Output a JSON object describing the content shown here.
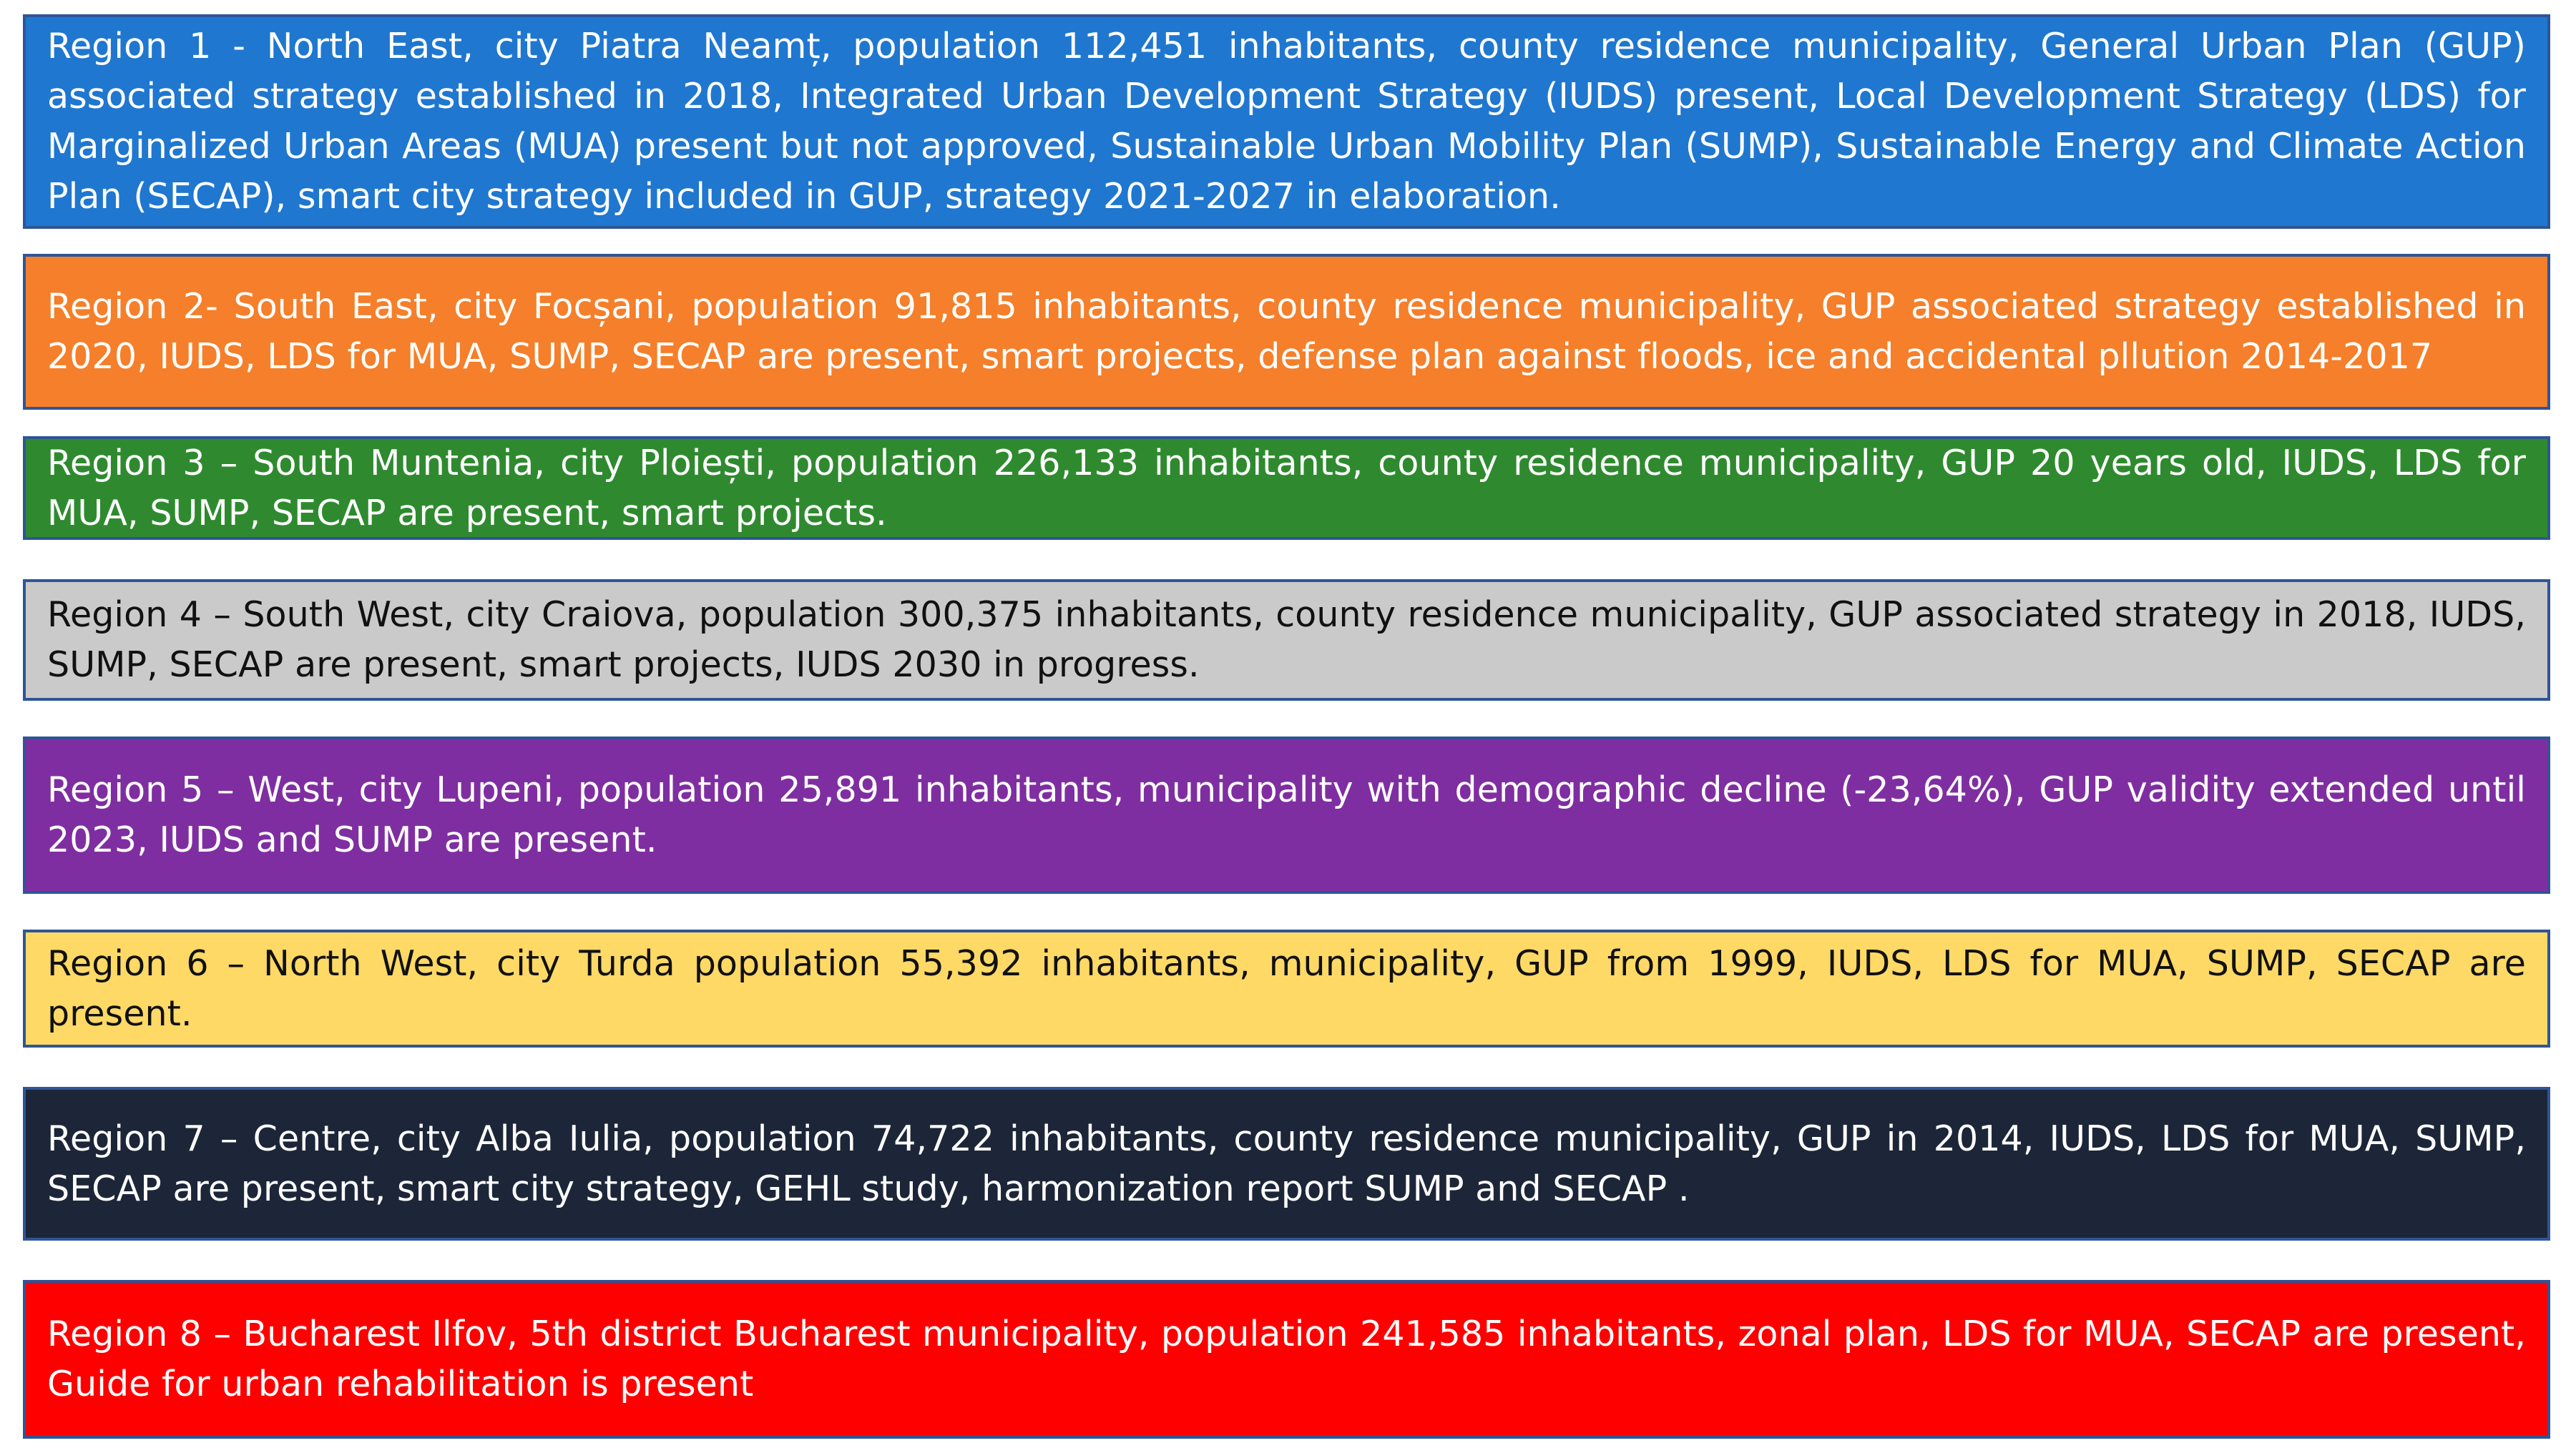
{
  "regions": [
    {
      "text": "Region 1 - North East, city Piatra Neamț, population 112,451 inhabitants, county residence municipality, General Urban Plan (GUP) associated strategy established in 2018, Integrated Urban Development Strategy (IUDS) present, Local Development Strategy (LDS) for Marginalized Urban Areas (MUA) present but not approved, Sustainable Urban Mobility Plan (SUMP), Sustainable Energy and Climate Action Plan (SECAP), smart city strategy included in GUP, strategy 2021-2027 in elaboration.",
      "bg": "#1f77d0",
      "fg": "#ffffff"
    },
    {
      "text": "Region 2- South East, city Focșani, population 91,815 inhabitants, county residence municipality, GUP associated strategy established in 2020, IUDS, LDS for MUA, SUMP, SECAP are present, smart projects, defense plan against floods, ice and accidental pllution 2014-2017",
      "bg": "#f57f2a",
      "fg": "#ffffff"
    },
    {
      "text": "Region 3 – South Muntenia, city Ploiești, population 226,133 inhabitants, county residence municipality, GUP 20 years old, IUDS, LDS for MUA, SUMP, SECAP are present, smart projects.",
      "bg": "#2f8a2f",
      "fg": "#ffffff"
    },
    {
      "text": "Region 4 – South West, city Craiova, population 300,375 inhabitants, county residence municipality, GUP associated strategy in 2018, IUDS, SUMP, SECAP are present, smart projects, IUDS 2030 in progress.",
      "bg": "#cacaca",
      "fg": "#111111"
    },
    {
      "text": "Region 5 – West, city Lupeni, population 25,891 inhabitants, municipality with demographic decline (-23,64%), GUP validity extended until 2023, IUDS and SUMP are present.",
      "bg": "#7f2ea1",
      "fg": "#ffffff"
    },
    {
      "text": "Region 6 – North West, city Turda population 55,392 inhabitants, municipality, GUP from 1999, IUDS, LDS for MUA, SUMP, SECAP are present.",
      "bg": "#ffd966",
      "fg": "#111111"
    },
    {
      "text": "Region 7 – Centre, city Alba Iulia, population 74,722 inhabitants, county residence municipality, GUP in 2014, IUDS, LDS for MUA, SUMP, SECAP are present, smart city strategy, GEHL study, harmonization report SUMP and SECAP .",
      "bg": "#1c2638",
      "fg": "#ffffff"
    },
    {
      "text": "Region 8 – Bucharest Ilfov, 5th district Bucharest municipality, population 241,585 inhabitants, zonal plan, LDS for MUA, SECAP are present, Guide for urban rehabilitation is present",
      "bg": "#ff0000",
      "fg": "#ffffff"
    }
  ]
}
